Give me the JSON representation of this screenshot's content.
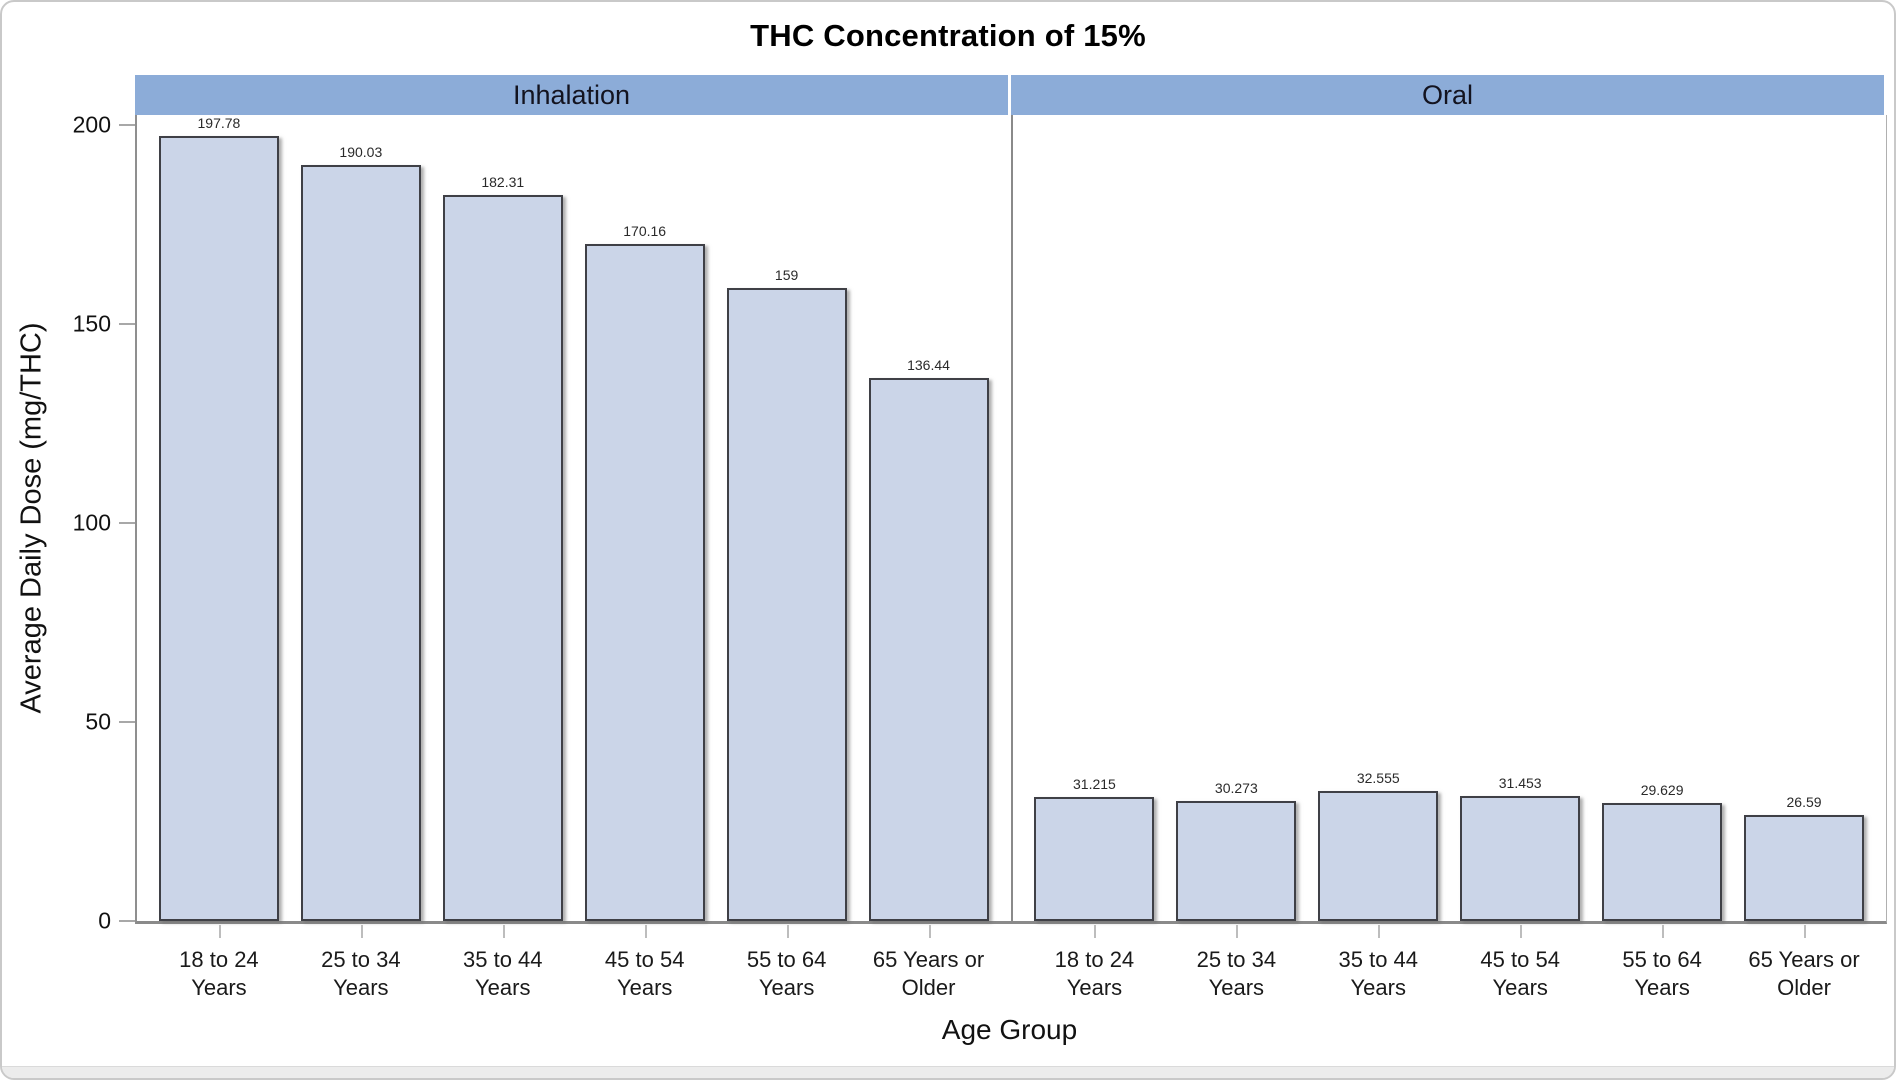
{
  "figure": {
    "title": "THC Concentration of 15%"
  },
  "chart_data": {
    "type": "bar",
    "title": "THC Concentration of 15%",
    "xlabel": "Age Group",
    "ylabel": "Average Daily Dose (mg/THC)",
    "ylim": [
      0,
      200
    ],
    "yticks": [
      0,
      50,
      100,
      150,
      200
    ],
    "grid": false,
    "legend": "none",
    "categories": [
      "18 to 24 Years",
      "25 to 34 Years",
      "35 to 44 Years",
      "45 to 54 Years",
      "55 to 64 Years",
      "65 Years or Older"
    ],
    "panels": [
      {
        "label": "Inhalation",
        "values": [
          197.78,
          190.03,
          182.31,
          170.16,
          159,
          136.44
        ],
        "value_labels": [
          "197.78",
          "190.03",
          "182.31",
          "170.16",
          "159",
          "136.44"
        ]
      },
      {
        "label": "Oral",
        "values": [
          31.215,
          30.273,
          32.555,
          31.453,
          29.629,
          26.59
        ],
        "value_labels": [
          "31.215",
          "30.273",
          "32.555",
          "31.453",
          "29.629",
          "26.59"
        ]
      }
    ]
  },
  "colors": {
    "bar_fill": "#cbd5e8",
    "bar_border": "#3f4046",
    "panel_band": "#8cacd8",
    "axis_line": "#8a8a8a",
    "footer_strip": "#ececec"
  }
}
